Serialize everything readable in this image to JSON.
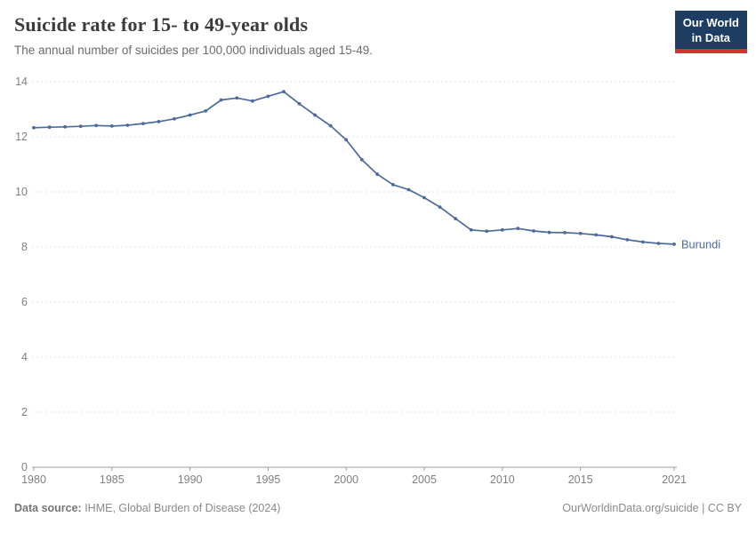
{
  "header": {
    "title": "Suicide rate for 15- to 49-year olds",
    "subtitle": "The annual number of suicides per 100,000 individuals aged 15-49.",
    "logo": {
      "line1": "Our World",
      "line2": "in Data"
    }
  },
  "chart_data": {
    "type": "line",
    "title": "Suicide rate for 15- to 49-year olds",
    "xlabel": "",
    "ylabel": "",
    "xlim": [
      1980,
      2021
    ],
    "ylim": [
      0,
      14
    ],
    "x_ticks": [
      1980,
      1985,
      1990,
      1995,
      2000,
      2005,
      2010,
      2015,
      2021
    ],
    "y_ticks": [
      0,
      2,
      4,
      6,
      8,
      10,
      12,
      14
    ],
    "grid": "horizontal-dashed",
    "legend_position": "end-of-line",
    "series": [
      {
        "name": "Burundi",
        "color": "#4C6A9C",
        "years": [
          1980,
          1981,
          1982,
          1983,
          1984,
          1985,
          1986,
          1987,
          1988,
          1989,
          1990,
          1991,
          1992,
          1993,
          1994,
          1995,
          1996,
          1997,
          1998,
          1999,
          2000,
          2001,
          2002,
          2003,
          2004,
          2005,
          2006,
          2007,
          2008,
          2009,
          2010,
          2011,
          2012,
          2013,
          2014,
          2015,
          2016,
          2017,
          2018,
          2019,
          2020,
          2021
        ],
        "values": [
          12.33,
          12.35,
          12.36,
          12.38,
          12.41,
          12.39,
          12.42,
          12.48,
          12.55,
          12.65,
          12.79,
          12.94,
          13.34,
          13.41,
          13.3,
          13.47,
          13.64,
          13.2,
          12.79,
          12.4,
          11.89,
          11.17,
          10.64,
          10.26,
          10.08,
          9.79,
          9.45,
          9.03,
          8.62,
          8.57,
          8.62,
          8.67,
          8.58,
          8.53,
          8.52,
          8.49,
          8.44,
          8.37,
          8.26,
          8.18,
          8.13,
          8.1
        ]
      }
    ],
    "colors": {
      "line": "#4C6A9C",
      "grid": "#e0e0e0",
      "axis": "#9e9e9e",
      "tick_label": "#7f7f7f"
    }
  },
  "footer": {
    "source_label": "Data source:",
    "source_text": " IHME, Global Burden of Disease (2024)",
    "license": "OurWorldinData.org/suicide | CC BY"
  }
}
